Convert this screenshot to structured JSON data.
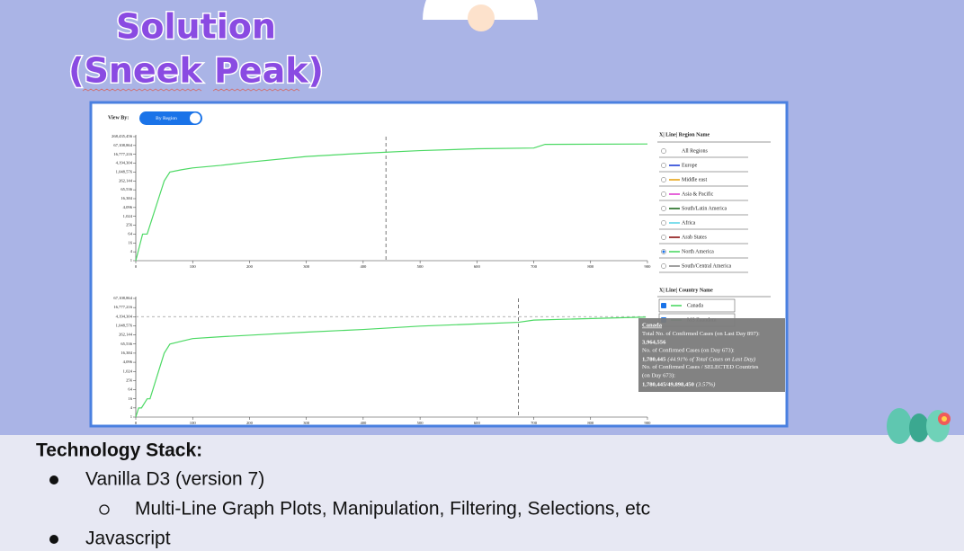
{
  "slide": {
    "title_line1": "Solution",
    "title_line2": "(Sneek Peak)",
    "stack": {
      "heading": "Technology Stack:",
      "items": [
        "Vanilla D3 (version 7)",
        "Multi-Line Graph Plots, Manipulation, Filtering, Selections, etc",
        "Javascript"
      ]
    }
  },
  "screenshot": {
    "view_by_label": "View By:",
    "toggle": "By Region",
    "region_legend": {
      "header": "X| Line| Region Name",
      "items": [
        {
          "label": "All Regions",
          "color": null
        },
        {
          "label": "Europe",
          "color": "#1f3fd6"
        },
        {
          "label": "Middle east",
          "color": "#e8a317"
        },
        {
          "label": "Asia & Pacific",
          "color": "#e040d0"
        },
        {
          "label": "South/Latin America",
          "color": "#1e6b1e"
        },
        {
          "label": "Africa",
          "color": "#5fd6e8"
        },
        {
          "label": "Arab States",
          "color": "#8b1010"
        },
        {
          "label": "North America",
          "color": "#4cd964",
          "selected": true
        },
        {
          "label": "South/Central America",
          "color": "#888888"
        }
      ]
    },
    "country_legend": {
      "header": "X| Line| Country Name",
      "items": [
        {
          "label": "Canada",
          "color": "#4cd964"
        },
        {
          "label": "MS Zaandam",
          "color": "#4cd964"
        }
      ]
    },
    "tooltip": {
      "country": "Canada",
      "lines": [
        "Total No. of Confirmed Cases (on Last Day 897):",
        "3,964,556",
        "No. of Confirmed Cases (on Day 673):"
      ],
      "day_value": "1,780,445",
      "day_note": "(44.91% of Total Cases on Last Day)",
      "lines2": [
        "No. of Confirmed Cases / SELECTED Countries",
        "(on Day 673):"
      ],
      "ratio": "1,780,445/49,898,450",
      "ratio_note": "(3.57%)"
    },
    "charts": [
      {
        "type": "line",
        "log_y": true,
        "xlim": [
          0,
          900
        ],
        "xticks": [
          0,
          100,
          200,
          300,
          400,
          500,
          600,
          700,
          800,
          900
        ],
        "ylim": [
          1,
          268435456
        ],
        "yticks": [
          1,
          4,
          16,
          64,
          256,
          {
            "value": 1024,
            "label": "1,024"
          },
          {
            "value": 4096,
            "label": "4,096"
          },
          {
            "value": 16384,
            "label": "16,384"
          },
          {
            "value": 65536,
            "label": "65,536"
          },
          {
            "value": 262144,
            "label": "262,144"
          },
          {
            "value": 1048576,
            "label": "1,048,576"
          },
          {
            "value": 4194304,
            "label": "4,194,304"
          },
          {
            "value": 16777216,
            "label": "16,777,216"
          },
          {
            "value": 67108864,
            "label": "67,108,864"
          },
          {
            "value": 268435456,
            "label": "268,435,456"
          }
        ],
        "cursor_x": 440,
        "series": [
          {
            "color": "#4cd964",
            "x": [
              0,
              8,
              12,
              20,
              25,
              30,
              40,
              50,
              60,
              80,
              100,
              150,
              200,
              300,
              400,
              500,
              600,
              700,
              720,
              900
            ],
            "values": [
              1,
              16,
              64,
              64,
              256,
              1024,
              16384,
              262144,
              1048576,
              1500000,
              2000000,
              3000000,
              5000000,
              12000000,
              20000000,
              30000000,
              40000000,
              45000000,
              80000000,
              85000000
            ]
          }
        ]
      },
      {
        "type": "line",
        "log_y": true,
        "xlim": [
          0,
          900
        ],
        "xticks": [
          0,
          100,
          200,
          300,
          400,
          500,
          600,
          700,
          800,
          900
        ],
        "ylim": [
          1,
          67108864
        ],
        "yticks": [
          1,
          4,
          16,
          64,
          256,
          {
            "value": 1024,
            "label": "1,024"
          },
          {
            "value": 4096,
            "label": "4,096"
          },
          {
            "value": 16384,
            "label": "16,384"
          },
          {
            "value": 65536,
            "label": "65,536"
          },
          {
            "value": 262144,
            "label": "262,144"
          },
          {
            "value": 1048576,
            "label": "1,048,576"
          },
          {
            "value": 4194304,
            "label": "4,194,304"
          },
          {
            "value": 16777216,
            "label": "16,777,216"
          },
          {
            "value": 67108864,
            "label": "67,108,864"
          }
        ],
        "cursor_x": 673,
        "cursor_y": 4194304,
        "series": [
          {
            "color": "#4cd964",
            "x": [
              0,
              5,
              10,
              20,
              25,
              30,
              40,
              50,
              60,
              80,
              100,
              150,
              200,
              300,
              400,
              500,
              600,
              673,
              700,
              897
            ],
            "values": [
              1,
              4,
              4,
              16,
              16,
              64,
              1024,
              16384,
              65536,
              100000,
              150000,
              200000,
              250000,
              400000,
              600000,
              1000000,
              1400000,
              1780445,
              2500000,
              3964556
            ]
          }
        ]
      }
    ]
  }
}
